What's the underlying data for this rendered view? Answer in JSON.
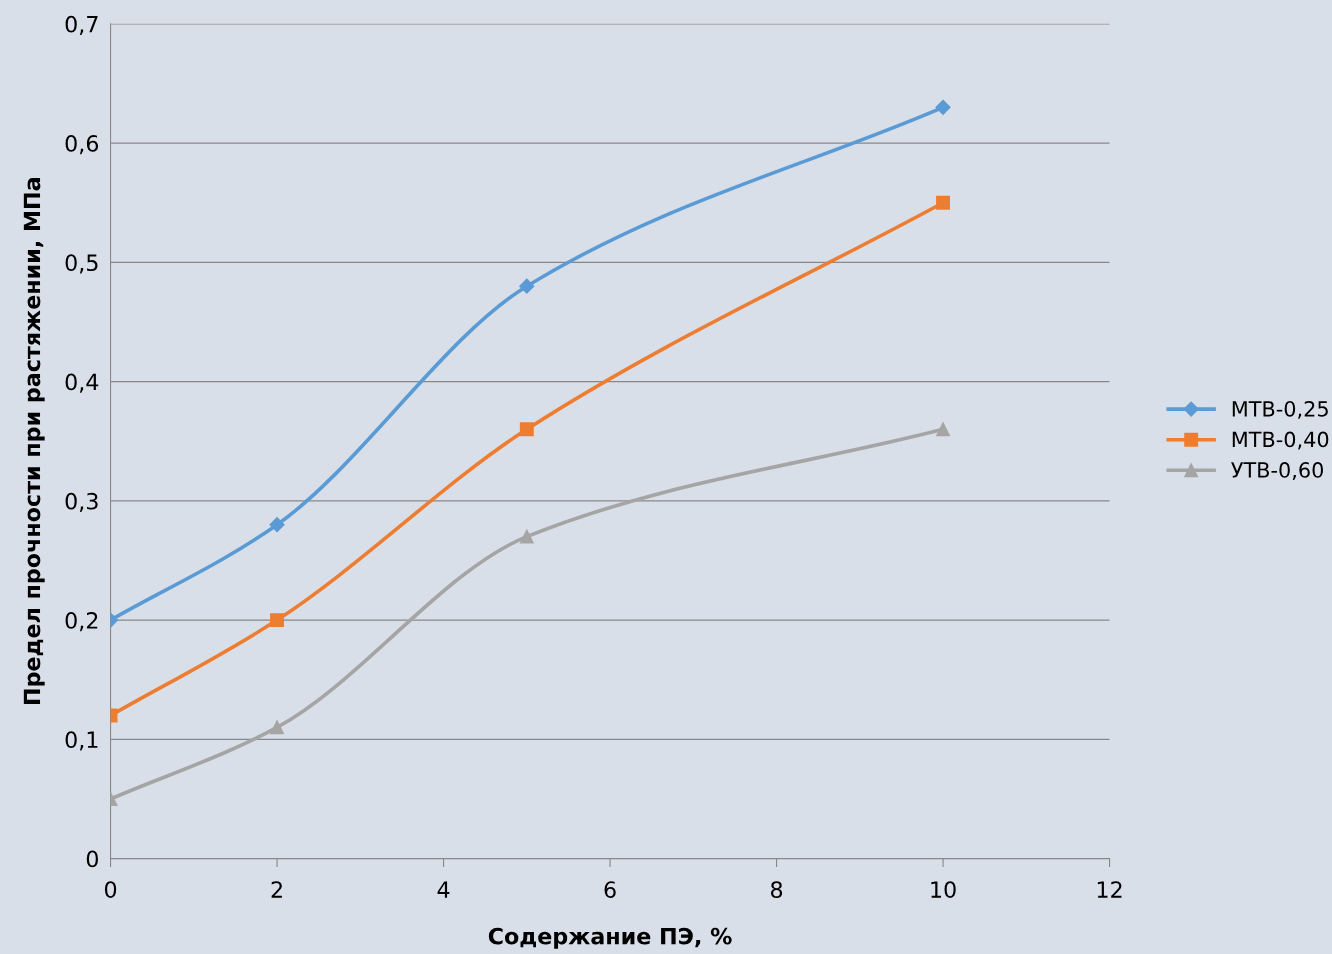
{
  "chart_data": {
    "type": "line",
    "xlabel": "Содержание ПЭ, %",
    "ylabel": "Предел прочности при растяжении, МПа",
    "x": [
      0,
      2,
      5,
      10
    ],
    "series": [
      {
        "name": "МТВ-0,25",
        "color": "#5b9bd5",
        "marker": "diamond",
        "values": [
          0.2,
          0.28,
          0.48,
          0.63
        ]
      },
      {
        "name": "МТВ-0,40",
        "color": "#ed7d31",
        "marker": "square",
        "values": [
          0.12,
          0.2,
          0.36,
          0.55
        ]
      },
      {
        "name": "УТВ-0,60",
        "color": "#a5a5a5",
        "marker": "triangle",
        "values": [
          0.05,
          0.11,
          0.27,
          0.36
        ]
      }
    ],
    "xlim": [
      0,
      12
    ],
    "xticks": [
      0,
      2,
      4,
      6,
      8,
      10,
      12
    ],
    "ylim": [
      0,
      0.7
    ],
    "yticks": [
      0,
      {
        "value": 0.1,
        "label": "0,1"
      },
      {
        "value": 0.2,
        "label": "0,2"
      },
      {
        "value": 0.3,
        "label": "0,3"
      },
      {
        "value": 0.4,
        "label": "0,4"
      },
      {
        "value": 0.5,
        "label": "0,5"
      },
      {
        "value": 0.6,
        "label": "0,6"
      },
      {
        "value": 0.7,
        "label": "0,7"
      }
    ],
    "grid": "y",
    "legend": "right",
    "line_style": "solid"
  }
}
